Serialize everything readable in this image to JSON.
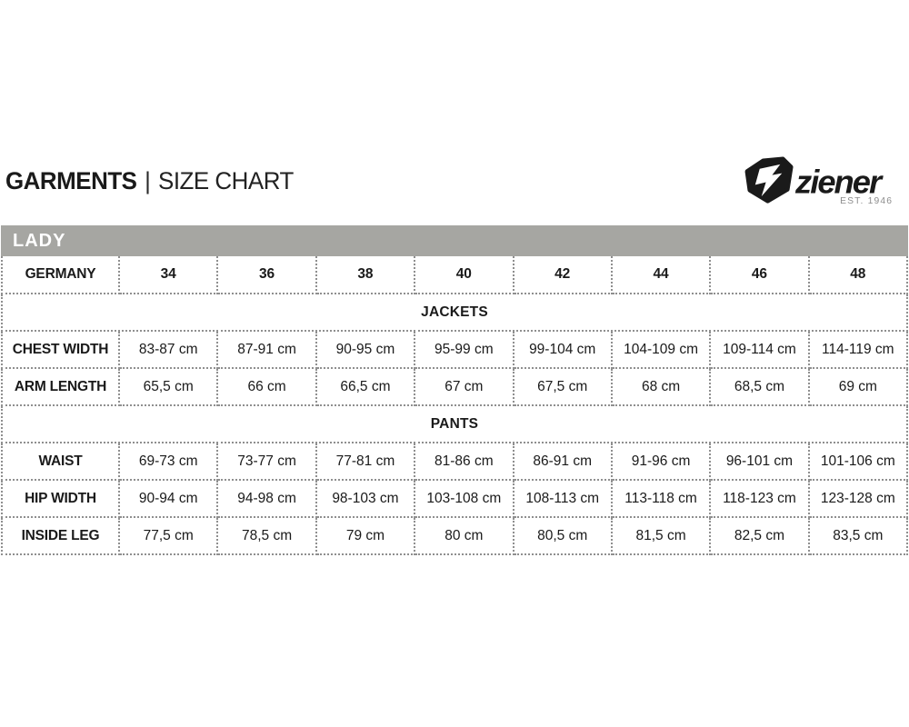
{
  "header": {
    "title_primary": "GARMENTS",
    "title_separator": "|",
    "title_secondary": "SIZE CHART"
  },
  "logo": {
    "brand": "ziener",
    "est": "EST. 1946"
  },
  "table": {
    "section_title": "LADY",
    "header_row": {
      "label": "GERMANY",
      "sizes": [
        "34",
        "36",
        "38",
        "40",
        "42",
        "44",
        "46",
        "48"
      ]
    },
    "sections": [
      {
        "title": "JACKETS",
        "rows": [
          {
            "label": "CHEST WIDTH",
            "values": [
              "83-87 cm",
              "87-91 cm",
              "90-95 cm",
              "95-99 cm",
              "99-104 cm",
              "104-109 cm",
              "109-114 cm",
              "114-119 cm"
            ]
          },
          {
            "label": "ARM LENGTH",
            "values": [
              "65,5 cm",
              "66 cm",
              "66,5 cm",
              "67 cm",
              "67,5 cm",
              "68 cm",
              "68,5 cm",
              "69 cm"
            ]
          }
        ]
      },
      {
        "title": "PANTS",
        "rows": [
          {
            "label": "WAIST",
            "values": [
              "69-73 cm",
              "73-77 cm",
              "77-81 cm",
              "81-86 cm",
              "86-91 cm",
              "91-96 cm",
              "96-101 cm",
              "101-106 cm"
            ]
          },
          {
            "label": "HIP WIDTH",
            "values": [
              "90-94 cm",
              "94-98 cm",
              "98-103 cm",
              "103-108 cm",
              "108-113 cm",
              "113-118 cm",
              "118-123 cm",
              "123-128 cm"
            ]
          },
          {
            "label": "INSIDE LEG",
            "values": [
              "77,5 cm",
              "78,5 cm",
              "79 cm",
              "80 cm",
              "80,5 cm",
              "81,5 cm",
              "82,5 cm",
              "83,5 cm"
            ]
          }
        ]
      }
    ]
  },
  "colors": {
    "band_gray": "#a6a6a2",
    "border_dots": "#8f8f8f",
    "text": "#1a1a1a",
    "logo_black": "#1a1a1a",
    "est_gray": "#8d8d8d",
    "background": "#ffffff"
  }
}
